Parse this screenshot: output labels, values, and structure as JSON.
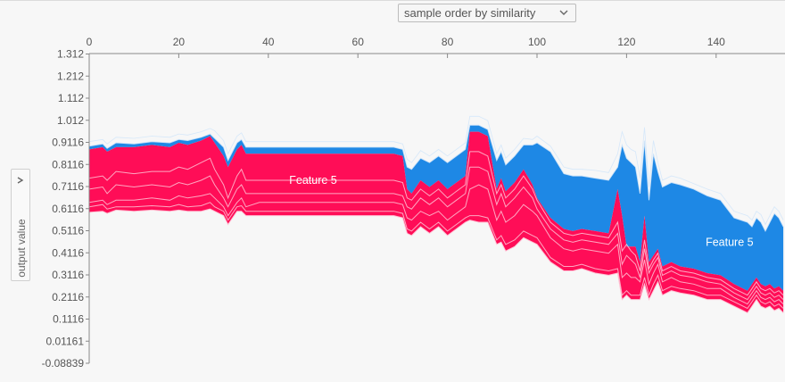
{
  "controls": {
    "order_select_value": "sample order by similarity",
    "ylabel": "output value"
  },
  "colors": {
    "positive": "#ff0d57",
    "negative": "#1e88e5",
    "separator": "#ffc3d5",
    "separator_neg": "#d1e6fa"
  },
  "chart_data": {
    "type": "area",
    "title": "",
    "xlabel": "",
    "ylabel": "output value",
    "xlim": [
      0,
      155
    ],
    "ylim": [
      -0.08839,
      1.312
    ],
    "x_ticks": [
      "0",
      "20",
      "40",
      "60",
      "80",
      "100",
      "120",
      "140"
    ],
    "y_ticks": [
      "1.312",
      "1.212",
      "1.112",
      "1.012",
      "0.9116",
      "0.8116",
      "0.7116",
      "0.6116",
      "0.5116",
      "0.4116",
      "0.3116",
      "0.2116",
      "0.1116",
      "0.01161",
      "-0.08839"
    ],
    "annotations": [
      {
        "text": "Feature 5",
        "x": 50,
        "y": 0.74
      },
      {
        "text": "Feature 5",
        "x": 143,
        "y": 0.46
      }
    ],
    "x": [
      0,
      3,
      4,
      6,
      10,
      14,
      18,
      20,
      22,
      25,
      27,
      28,
      30,
      31,
      33,
      34,
      35,
      38,
      42,
      50,
      60,
      68,
      70,
      71,
      72,
      74,
      76,
      78,
      80,
      82,
      84,
      85,
      87,
      89,
      91,
      92,
      93,
      95,
      97,
      99,
      100,
      103,
      106,
      108,
      110,
      113,
      116,
      118,
      119,
      120,
      121,
      122,
      123,
      124,
      125,
      126,
      127,
      128,
      130,
      132,
      135,
      138,
      141,
      144,
      147,
      148,
      149,
      150,
      151,
      152,
      153,
      154,
      155
    ],
    "output_value": [
      0.915,
      0.925,
      0.905,
      0.935,
      0.93,
      0.94,
      0.935,
      0.95,
      0.945,
      0.96,
      0.975,
      0.965,
      0.92,
      0.86,
      0.94,
      0.955,
      0.915,
      0.915,
      0.915,
      0.915,
      0.915,
      0.915,
      0.905,
      0.835,
      0.82,
      0.875,
      0.85,
      0.88,
      0.85,
      0.88,
      0.91,
      1.03,
      1.03,
      1.01,
      0.86,
      0.9,
      0.84,
      0.88,
      0.93,
      0.925,
      0.94,
      0.895,
      0.8,
      0.79,
      0.79,
      0.785,
      0.775,
      0.86,
      0.96,
      0.9,
      0.88,
      0.87,
      0.75,
      0.98,
      0.71,
      0.92,
      0.82,
      0.74,
      0.76,
      0.75,
      0.725,
      0.7,
      0.68,
      0.6,
      0.58,
      0.56,
      0.6,
      0.585,
      0.54,
      0.58,
      0.62,
      0.6,
      0.56
    ],
    "feature_boundaries": [
      {
        "name": "base",
        "values": [
          0.595,
          0.6,
          0.59,
          0.605,
          0.6,
          0.605,
          0.6,
          0.605,
          0.6,
          0.6,
          0.61,
          0.6,
          0.58,
          0.54,
          0.6,
          0.6,
          0.58,
          0.58,
          0.58,
          0.58,
          0.58,
          0.58,
          0.57,
          0.5,
          0.49,
          0.53,
          0.5,
          0.53,
          0.49,
          0.52,
          0.55,
          0.56,
          0.55,
          0.55,
          0.45,
          0.46,
          0.42,
          0.44,
          0.48,
          0.46,
          0.45,
          0.37,
          0.33,
          0.33,
          0.34,
          0.32,
          0.31,
          0.32,
          0.2,
          0.22,
          0.2,
          0.2,
          0.2,
          0.27,
          0.2,
          0.24,
          0.28,
          0.22,
          0.24,
          0.23,
          0.22,
          0.2,
          0.2,
          0.17,
          0.14,
          0.17,
          0.2,
          0.17,
          0.16,
          0.17,
          0.15,
          0.16,
          0.14
        ]
      },
      {
        "name": "b1",
        "values": [
          0.62,
          0.63,
          0.61,
          0.62,
          0.62,
          0.625,
          0.62,
          0.63,
          0.62,
          0.625,
          0.64,
          0.62,
          0.6,
          0.56,
          0.62,
          0.625,
          0.6,
          0.6,
          0.6,
          0.6,
          0.6,
          0.6,
          0.59,
          0.52,
          0.51,
          0.55,
          0.52,
          0.55,
          0.51,
          0.54,
          0.57,
          0.58,
          0.58,
          0.57,
          0.47,
          0.49,
          0.45,
          0.47,
          0.51,
          0.49,
          0.48,
          0.39,
          0.35,
          0.35,
          0.36,
          0.34,
          0.33,
          0.34,
          0.22,
          0.24,
          0.22,
          0.22,
          0.22,
          0.3,
          0.22,
          0.27,
          0.31,
          0.24,
          0.26,
          0.25,
          0.24,
          0.22,
          0.22,
          0.19,
          0.16,
          0.19,
          0.22,
          0.19,
          0.18,
          0.19,
          0.17,
          0.18,
          0.16
        ]
      },
      {
        "name": "b2",
        "values": [
          0.64,
          0.65,
          0.63,
          0.65,
          0.65,
          0.66,
          0.65,
          0.67,
          0.66,
          0.67,
          0.68,
          0.66,
          0.62,
          0.58,
          0.64,
          0.66,
          0.62,
          0.64,
          0.64,
          0.64,
          0.64,
          0.64,
          0.63,
          0.57,
          0.56,
          0.6,
          0.58,
          0.6,
          0.56,
          0.59,
          0.62,
          0.7,
          0.72,
          0.7,
          0.56,
          0.6,
          0.55,
          0.58,
          0.63,
          0.6,
          0.58,
          0.48,
          0.43,
          0.42,
          0.43,
          0.42,
          0.41,
          0.45,
          0.3,
          0.32,
          0.3,
          0.3,
          0.28,
          0.38,
          0.27,
          0.32,
          0.36,
          0.28,
          0.3,
          0.28,
          0.27,
          0.25,
          0.25,
          0.21,
          0.18,
          0.21,
          0.24,
          0.21,
          0.2,
          0.21,
          0.19,
          0.2,
          0.18
        ]
      },
      {
        "name": "b3",
        "values": [
          0.7,
          0.71,
          0.68,
          0.72,
          0.71,
          0.72,
          0.71,
          0.73,
          0.72,
          0.74,
          0.76,
          0.72,
          0.66,
          0.62,
          0.7,
          0.72,
          0.68,
          0.68,
          0.68,
          0.68,
          0.68,
          0.68,
          0.67,
          0.62,
          0.61,
          0.66,
          0.63,
          0.66,
          0.62,
          0.65,
          0.68,
          0.8,
          0.8,
          0.78,
          0.63,
          0.68,
          0.62,
          0.66,
          0.71,
          0.66,
          0.61,
          0.52,
          0.47,
          0.46,
          0.47,
          0.46,
          0.45,
          0.5,
          0.36,
          0.4,
          0.38,
          0.36,
          0.3,
          0.43,
          0.32,
          0.36,
          0.39,
          0.31,
          0.33,
          0.31,
          0.3,
          0.28,
          0.27,
          0.23,
          0.2,
          0.23,
          0.26,
          0.23,
          0.22,
          0.23,
          0.21,
          0.22,
          0.2
        ]
      },
      {
        "name": "b4",
        "values": [
          0.75,
          0.76,
          0.74,
          0.78,
          0.77,
          0.78,
          0.78,
          0.8,
          0.79,
          0.82,
          0.84,
          0.79,
          0.72,
          0.66,
          0.76,
          0.79,
          0.74,
          0.74,
          0.74,
          0.74,
          0.74,
          0.74,
          0.73,
          0.66,
          0.65,
          0.7,
          0.67,
          0.7,
          0.66,
          0.69,
          0.72,
          0.87,
          0.87,
          0.85,
          0.68,
          0.72,
          0.66,
          0.7,
          0.76,
          0.7,
          0.65,
          0.55,
          0.5,
          0.49,
          0.5,
          0.49,
          0.48,
          0.55,
          0.42,
          0.45,
          0.42,
          0.4,
          0.33,
          0.47,
          0.34,
          0.38,
          0.41,
          0.33,
          0.35,
          0.33,
          0.32,
          0.3,
          0.29,
          0.25,
          0.22,
          0.25,
          0.28,
          0.25,
          0.24,
          0.25,
          0.23,
          0.24,
          0.22
        ]
      },
      {
        "name": "b5",
        "values": [
          0.88,
          0.89,
          0.87,
          0.89,
          0.89,
          0.9,
          0.89,
          0.91,
          0.9,
          0.92,
          0.94,
          0.91,
          0.85,
          0.8,
          0.88,
          0.9,
          0.86,
          0.86,
          0.86,
          0.86,
          0.86,
          0.86,
          0.85,
          0.7,
          0.68,
          0.74,
          0.71,
          0.74,
          0.7,
          0.73,
          0.76,
          0.96,
          0.96,
          0.94,
          0.7,
          0.75,
          0.69,
          0.73,
          0.79,
          0.72,
          0.66,
          0.57,
          0.52,
          0.51,
          0.52,
          0.51,
          0.5,
          0.7,
          0.58,
          0.44,
          0.44,
          0.44,
          0.37,
          0.58,
          0.37,
          0.4,
          0.43,
          0.35,
          0.37,
          0.35,
          0.34,
          0.32,
          0.31,
          0.27,
          0.24,
          0.27,
          0.3,
          0.27,
          0.26,
          0.27,
          0.25,
          0.26,
          0.24
        ]
      },
      {
        "name": "b6",
        "values": [
          0.895,
          0.905,
          0.885,
          0.91,
          0.905,
          0.915,
          0.91,
          0.925,
          0.92,
          0.935,
          0.95,
          0.93,
          0.89,
          0.83,
          0.91,
          0.925,
          0.89,
          0.89,
          0.89,
          0.89,
          0.89,
          0.89,
          0.88,
          0.8,
          0.79,
          0.84,
          0.82,
          0.85,
          0.82,
          0.85,
          0.88,
          0.99,
          0.99,
          0.97,
          0.83,
          0.87,
          0.81,
          0.85,
          0.9,
          0.9,
          0.91,
          0.87,
          0.77,
          0.76,
          0.76,
          0.75,
          0.74,
          0.8,
          0.9,
          0.84,
          0.82,
          0.8,
          0.68,
          0.92,
          0.65,
          0.86,
          0.78,
          0.71,
          0.73,
          0.72,
          0.7,
          0.67,
          0.65,
          0.57,
          0.55,
          0.53,
          0.57,
          0.55,
          0.51,
          0.55,
          0.59,
          0.57,
          0.53
        ]
      }
    ]
  }
}
